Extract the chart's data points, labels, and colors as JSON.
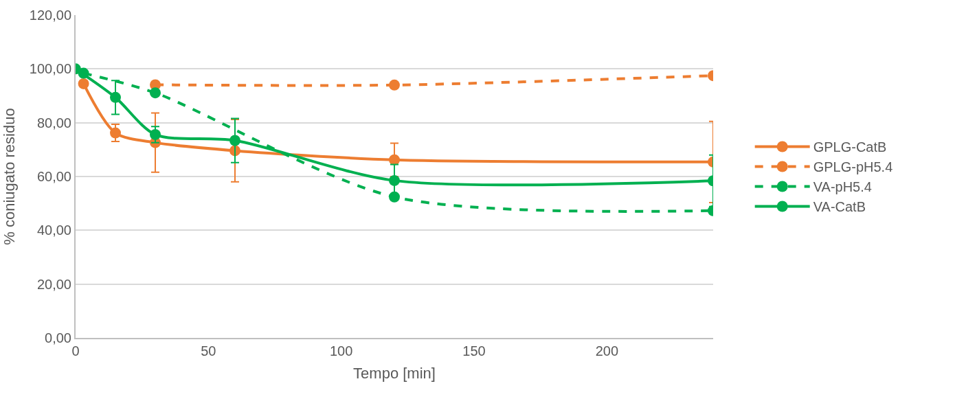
{
  "chart_data": {
    "type": "line",
    "xlabel": "Tempo [min]",
    "ylabel": "% coniugato residuo",
    "xlim": [
      0,
      240
    ],
    "xticks": [
      0,
      50,
      100,
      150,
      200
    ],
    "ylim": [
      0,
      120
    ],
    "yticks": [
      {
        "value": 0,
        "label": "0,00"
      },
      {
        "value": 20,
        "label": "20,00"
      },
      {
        "value": 40,
        "label": "40,00"
      },
      {
        "value": 60,
        "label": "60,00"
      },
      {
        "value": 80,
        "label": "80,00"
      },
      {
        "value": 100,
        "label": "100,00"
      },
      {
        "value": 120,
        "label": "120,00"
      }
    ],
    "grid": "y",
    "legend": "right",
    "marker": "circle",
    "series": [
      {
        "name": "GPLG-CatB",
        "color": "#ed7d31",
        "line_style": "solid",
        "x": [
          3,
          15,
          30,
          60,
          120,
          240
        ],
        "values": [
          94.5,
          76.2,
          72.6,
          69.6,
          66.2,
          65.4
        ],
        "errors": [
          null,
          3.2,
          11,
          11.6,
          6.2,
          15.1
        ]
      },
      {
        "name": "GPLG-pH5.4",
        "color": "#ed7d31",
        "line_style": "dashed",
        "x": [
          30,
          120,
          240
        ],
        "values": [
          94.1,
          94.0,
          97.5
        ]
      },
      {
        "name": "VA-pH5.4",
        "color": "#00b050",
        "line_style": "dashed",
        "x": [
          3,
          30,
          120,
          240
        ],
        "values": [
          98.4,
          91.1,
          52.4,
          47.3
        ]
      },
      {
        "name": "VA-CatB",
        "color": "#00b050",
        "line_style": "solid",
        "x": [
          0,
          15,
          30,
          60,
          120,
          240
        ],
        "values": [
          100,
          89.4,
          75.6,
          73.4,
          58.5,
          58.4
        ],
        "errors": [
          null,
          6.3,
          3,
          8.2,
          6,
          9.6
        ]
      }
    ]
  }
}
